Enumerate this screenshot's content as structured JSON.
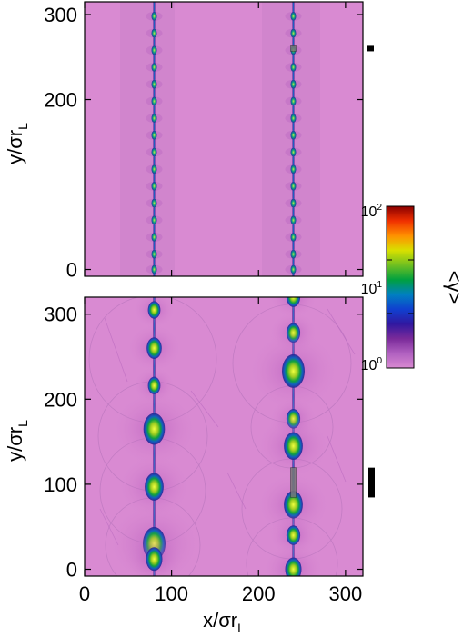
{
  "chart_data": [
    {
      "type": "heatmap",
      "panel": "top",
      "title": "",
      "xlabel": "",
      "ylabel": "y/σr",
      "ylabel_subscript": "L",
      "xlim": [
        0,
        320
      ],
      "ylim": [
        -8,
        315
      ],
      "yticks": [
        0,
        200,
        300
      ],
      "ytick_labels": [
        "0",
        "200",
        "300"
      ],
      "filament_x": [
        80,
        240
      ],
      "background_level": 1.0,
      "knot_y": [
        0,
        18,
        38,
        58,
        78,
        98,
        118,
        138,
        158,
        178,
        198,
        218,
        238,
        258,
        278,
        298
      ],
      "scale_bar": {
        "y_center": 260,
        "length": 6
      }
    },
    {
      "type": "heatmap",
      "panel": "bottom",
      "title": "",
      "xlabel": "x/σr",
      "xlabel_subscript": "L",
      "ylabel": "y/σr",
      "ylabel_subscript": "L",
      "xlim": [
        0,
        320
      ],
      "ylim": [
        -8,
        320
      ],
      "xticks": [
        0,
        100,
        200,
        300
      ],
      "xtick_labels": [
        "0",
        "100",
        "200",
        "300"
      ],
      "yticks": [
        0,
        100,
        200,
        300
      ],
      "ytick_labels": [
        "0",
        "100",
        "200",
        "300"
      ],
      "filament_x": [
        80,
        240
      ],
      "blobs_left": [
        {
          "y": 305,
          "size": 0.7
        },
        {
          "y": 260,
          "size": 0.9
        },
        {
          "y": 216,
          "size": 0.7
        },
        {
          "y": 165,
          "size": 1.4
        },
        {
          "y": 97,
          "size": 1.2
        },
        {
          "y": 30,
          "size": 1.5
        },
        {
          "y": 12,
          "size": 1.0
        }
      ],
      "blobs_right": [
        {
          "y": 320,
          "size": 0.8
        },
        {
          "y": 278,
          "size": 0.8
        },
        {
          "y": 233,
          "size": 1.5
        },
        {
          "y": 177,
          "size": 0.8
        },
        {
          "y": 145,
          "size": 1.2
        },
        {
          "y": 76,
          "size": 1.2
        },
        {
          "y": 40,
          "size": 0.8
        },
        {
          "y": 0,
          "size": 1.0
        }
      ],
      "scale_bar": {
        "y_center": 102,
        "length": 35
      }
    }
  ],
  "colorbar": {
    "label": "<γ>",
    "scale": "log",
    "range": [
      1,
      100
    ],
    "tick_base": "10",
    "tick_exponents": [
      "2",
      "1",
      "0"
    ],
    "colors": [
      "#d98ad2",
      "#b060c0",
      "#7a2a9a",
      "#3018a0",
      "#1040d0",
      "#0080c0",
      "#00a040",
      "#70c020",
      "#d8e000",
      "#ff9000",
      "#f03000",
      "#8a0000"
    ]
  }
}
